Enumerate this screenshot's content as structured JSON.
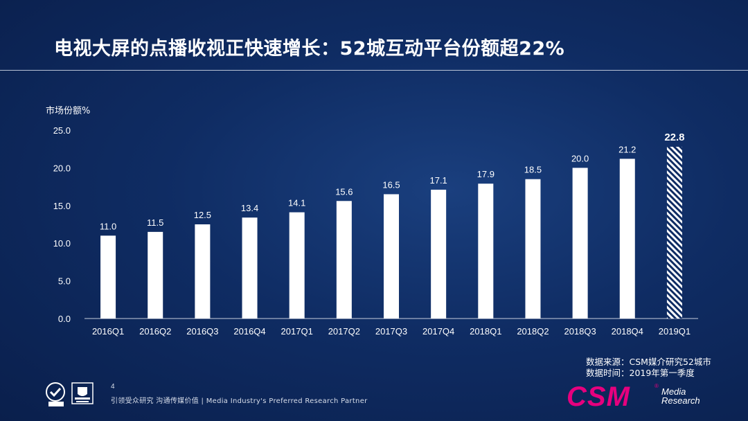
{
  "title": "电视大屏的点播收视正快速增长：52城互动平台份额超22%",
  "chart_data": {
    "type": "bar",
    "ylabel": "市场份额%",
    "xlabel": "",
    "categories": [
      "2016Q1",
      "2016Q2",
      "2016Q3",
      "2016Q4",
      "2017Q1",
      "2017Q2",
      "2017Q3",
      "2017Q4",
      "2018Q1",
      "2018Q2",
      "2018Q3",
      "2018Q4",
      "2019Q1"
    ],
    "values": [
      11.0,
      11.5,
      12.5,
      13.4,
      14.1,
      15.6,
      16.5,
      17.1,
      17.9,
      18.5,
      20.0,
      21.2,
      22.8
    ],
    "value_labels": [
      "11.0",
      "11.5",
      "12.5",
      "13.4",
      "14.1",
      "15.6",
      "16.5",
      "17.1",
      "17.9",
      "18.5",
      "20.0",
      "21.2",
      "22.8"
    ],
    "ylim": [
      0,
      25
    ],
    "yticks": [
      "0.0",
      "5.0",
      "10.0",
      "15.0",
      "20.0",
      "25.0"
    ],
    "grid": false,
    "highlight": {
      "category": "2019Q1",
      "style": "hatched",
      "label_bold": true
    },
    "bar_color": "#ffffff"
  },
  "source": {
    "line1": "数据来源：CSM媒介研究52城市",
    "line2": "数据时间：2019年第一季度"
  },
  "footer": {
    "page_number": "4",
    "tagline": "引领受众研究  沟通传媒价值 | Media  Industry's  Preferred  Research  Partner"
  },
  "brand": {
    "name": "CSM",
    "registered": "®",
    "line1": "Media",
    "line2": "Research",
    "color": "#e6007e"
  },
  "cert_logos": [
    "sgs-certification-logo",
    "ukas-accreditation-logo"
  ]
}
